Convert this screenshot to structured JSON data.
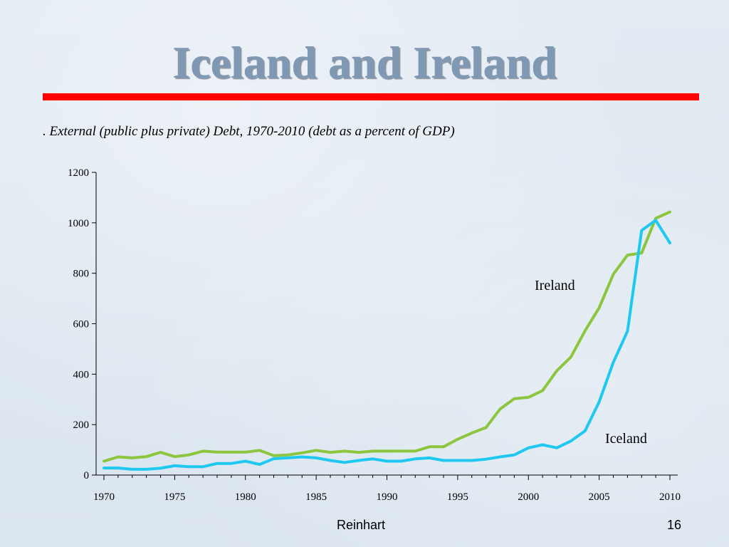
{
  "slide": {
    "title": "Iceland and Ireland",
    "subtitle": ". External (public plus private) Debt, 1970-2010 (debt as a percent of GDP)",
    "footer_author": "Reinhart",
    "page_number": "16"
  },
  "colors": {
    "title": "#7f99b5",
    "rule": "#ff0000",
    "ireland": "#8cc63f",
    "iceland": "#1ec8f0",
    "axis": "#000000"
  },
  "chart_data": {
    "type": "line",
    "title": "",
    "xlabel": "",
    "ylabel": "",
    "xlim": [
      1970,
      2010
    ],
    "ylim": [
      0,
      1200
    ],
    "x_ticks": [
      1970,
      1975,
      1980,
      1985,
      1990,
      1995,
      2000,
      2005,
      2010
    ],
    "y_ticks": [
      0,
      200,
      400,
      600,
      800,
      1000,
      1200
    ],
    "grid": false,
    "legend": "none",
    "x": [
      1970,
      1971,
      1972,
      1973,
      1974,
      1975,
      1976,
      1977,
      1978,
      1979,
      1980,
      1981,
      1982,
      1983,
      1984,
      1985,
      1986,
      1987,
      1988,
      1989,
      1990,
      1991,
      1992,
      1993,
      1994,
      1995,
      1996,
      1997,
      1998,
      1999,
      2000,
      2001,
      2002,
      2003,
      2004,
      2005,
      2006,
      2007,
      2008,
      2009,
      2010
    ],
    "series": [
      {
        "name": "Ireland",
        "color": "#8cc63f",
        "values": [
          55,
          72,
          68,
          73,
          90,
          73,
          80,
          95,
          91,
          91,
          91,
          98,
          77,
          80,
          88,
          98,
          90,
          95,
          90,
          95,
          95,
          95,
          95,
          112,
          112,
          142,
          167,
          188,
          262,
          303,
          308,
          335,
          413,
          468,
          572,
          663,
          796,
          872,
          880,
          1018,
          1043
        ]
      },
      {
        "name": "Iceland",
        "color": "#1ec8f0",
        "values": [
          28,
          28,
          23,
          23,
          27,
          37,
          33,
          33,
          46,
          46,
          55,
          42,
          65,
          68,
          72,
          68,
          58,
          50,
          58,
          64,
          55,
          55,
          64,
          68,
          58,
          58,
          58,
          63,
          72,
          80,
          108,
          120,
          108,
          135,
          175,
          290,
          447,
          570,
          970,
          1010,
          920
        ]
      }
    ]
  }
}
